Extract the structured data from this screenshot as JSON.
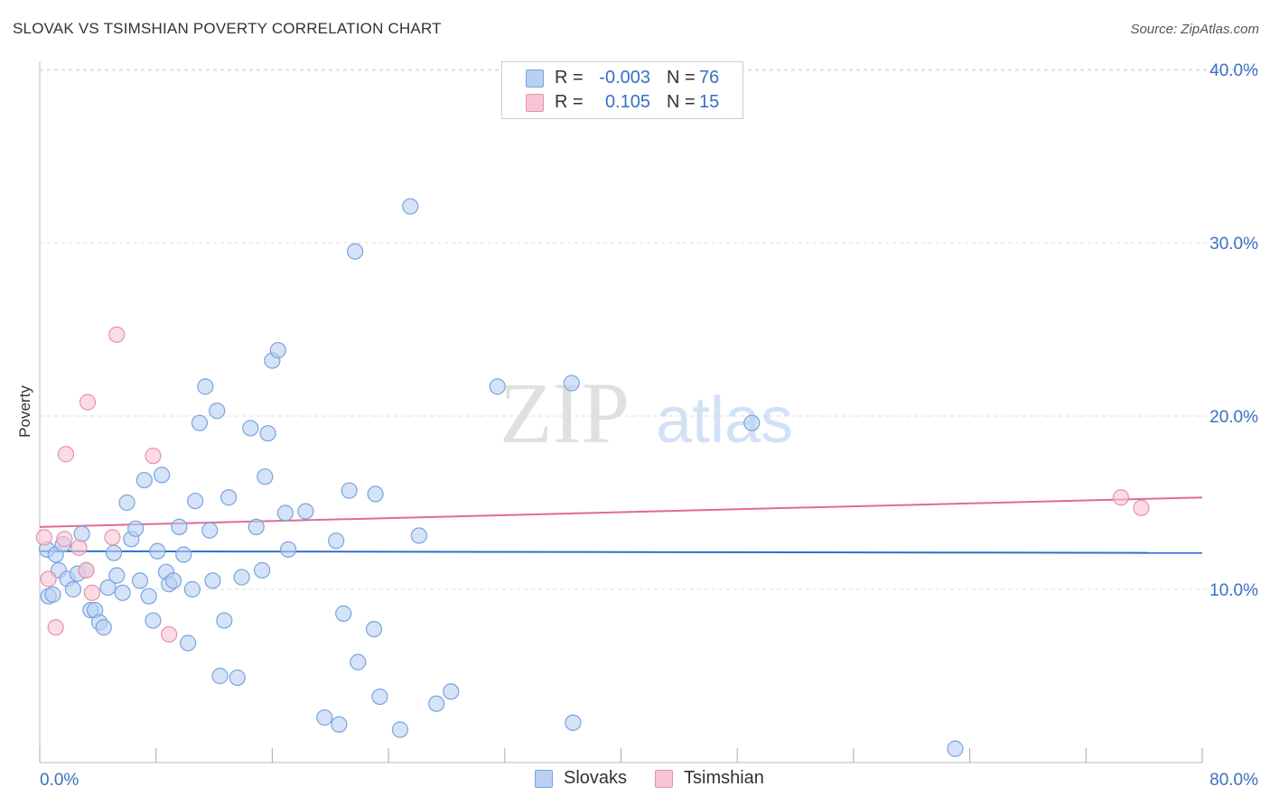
{
  "title": "SLOVAK VS TSIMSHIAN POVERTY CORRELATION CHART",
  "source": "Source: ZipAtlas.com",
  "watermark": {
    "zip": "ZIP",
    "atlas": "atlas"
  },
  "legend": {
    "rows": [
      {
        "r_label": "R =",
        "r_value": "-0.003",
        "n_label": "N =",
        "n_value": "76"
      },
      {
        "r_label": "R =",
        "r_value": "0.105",
        "n_label": "N =",
        "n_value": "15"
      }
    ]
  },
  "bottom_legend": {
    "series1": "Slovaks",
    "series2": "Tsimshian"
  },
  "colors": {
    "slovaks_fill": "#b8d0f2",
    "slovaks_stroke": "#7aa3de",
    "slovaks_line": "#2f6fd1",
    "tsimshian_fill": "#f8c5d4",
    "tsimshian_stroke": "#e891ad",
    "tsimshian_line": "#e06b94",
    "axis_label": "#3a6fc4",
    "grid": "#dddddd"
  },
  "chart_data": {
    "type": "scatter",
    "title": "SLOVAK VS TSIMSHIAN POVERTY CORRELATION CHART",
    "xlabel": "",
    "ylabel": "Poverty",
    "xlim": [
      0,
      80
    ],
    "ylim": [
      0,
      42
    ],
    "x_tick_labels": [
      "0.0%",
      "80.0%"
    ],
    "y_ticks": [
      10,
      20,
      30,
      40
    ],
    "y_tick_labels": [
      "10.0%",
      "20.0%",
      "30.0%",
      "40.0%"
    ],
    "grid": true,
    "series": [
      {
        "name": "Slovaks",
        "points": [
          [
            0.5,
            12.3
          ],
          [
            0.6,
            9.6
          ],
          [
            0.9,
            9.7
          ],
          [
            1.1,
            12.0
          ],
          [
            1.3,
            11.1
          ],
          [
            1.6,
            12.6
          ],
          [
            1.9,
            10.6
          ],
          [
            2.3,
            10.0
          ],
          [
            2.6,
            10.9
          ],
          [
            2.9,
            13.2
          ],
          [
            3.2,
            11.1
          ],
          [
            3.5,
            8.8
          ],
          [
            3.8,
            8.8
          ],
          [
            4.1,
            8.1
          ],
          [
            4.4,
            7.8
          ],
          [
            4.7,
            10.1
          ],
          [
            5.1,
            12.1
          ],
          [
            5.3,
            10.8
          ],
          [
            5.7,
            9.8
          ],
          [
            6.0,
            15.0
          ],
          [
            6.3,
            12.9
          ],
          [
            6.6,
            13.5
          ],
          [
            6.9,
            10.5
          ],
          [
            7.2,
            16.3
          ],
          [
            7.5,
            9.6
          ],
          [
            7.8,
            8.2
          ],
          [
            8.1,
            12.2
          ],
          [
            8.4,
            16.6
          ],
          [
            8.7,
            11.0
          ],
          [
            8.9,
            10.3
          ],
          [
            9.2,
            10.5
          ],
          [
            9.6,
            13.6
          ],
          [
            9.9,
            12.0
          ],
          [
            10.2,
            6.9
          ],
          [
            10.5,
            10.0
          ],
          [
            10.7,
            15.1
          ],
          [
            11.0,
            19.6
          ],
          [
            11.4,
            21.7
          ],
          [
            11.7,
            13.4
          ],
          [
            11.9,
            10.5
          ],
          [
            12.2,
            20.3
          ],
          [
            12.4,
            5.0
          ],
          [
            12.7,
            8.2
          ],
          [
            13.0,
            15.3
          ],
          [
            13.6,
            4.9
          ],
          [
            13.9,
            10.7
          ],
          [
            14.5,
            19.3
          ],
          [
            14.9,
            13.6
          ],
          [
            15.3,
            11.1
          ],
          [
            15.5,
            16.5
          ],
          [
            15.7,
            19.0
          ],
          [
            16.0,
            23.2
          ],
          [
            16.4,
            23.8
          ],
          [
            16.9,
            14.4
          ],
          [
            17.1,
            12.3
          ],
          [
            18.3,
            14.5
          ],
          [
            19.6,
            2.6
          ],
          [
            20.4,
            12.8
          ],
          [
            20.6,
            2.2
          ],
          [
            20.9,
            8.6
          ],
          [
            21.3,
            15.7
          ],
          [
            21.7,
            29.5
          ],
          [
            21.9,
            5.8
          ],
          [
            23.0,
            7.7
          ],
          [
            23.1,
            15.5
          ],
          [
            23.4,
            3.8
          ],
          [
            24.8,
            1.9
          ],
          [
            25.5,
            32.1
          ],
          [
            26.1,
            13.1
          ],
          [
            27.3,
            3.4
          ],
          [
            28.3,
            4.1
          ],
          [
            31.5,
            21.7
          ],
          [
            36.6,
            21.9
          ],
          [
            36.7,
            2.3
          ],
          [
            49.0,
            19.6
          ],
          [
            63.0,
            0.8
          ]
        ],
        "trend": {
          "x": [
            0,
            80
          ],
          "y": [
            12.2,
            12.1
          ]
        }
      },
      {
        "name": "Tsimshian",
        "points": [
          [
            0.3,
            13.0
          ],
          [
            0.6,
            10.6
          ],
          [
            1.1,
            7.8
          ],
          [
            1.7,
            12.9
          ],
          [
            1.8,
            17.8
          ],
          [
            2.7,
            12.4
          ],
          [
            3.2,
            11.1
          ],
          [
            3.3,
            20.8
          ],
          [
            3.6,
            9.8
          ],
          [
            5.0,
            13.0
          ],
          [
            5.3,
            24.7
          ],
          [
            7.8,
            17.7
          ],
          [
            8.9,
            7.4
          ],
          [
            74.4,
            15.3
          ],
          [
            75.8,
            14.7
          ]
        ],
        "trend": {
          "x": [
            0,
            80
          ],
          "y": [
            13.6,
            15.3
          ]
        }
      }
    ]
  }
}
